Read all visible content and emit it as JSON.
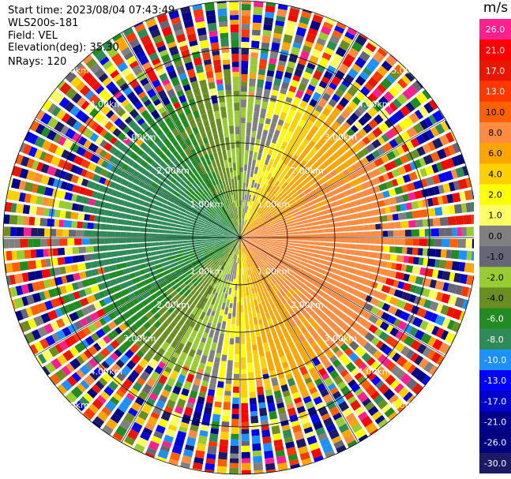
{
  "header": {
    "start_time": "Start time: 2023/08/04 07:43:49",
    "instrument": "WLS200s-181",
    "field": "Field: VEL",
    "elevation": "Elevation(deg): 35.30",
    "nrays": "NRays: 120"
  },
  "ring_labels": [
    "1.00km",
    "2.00km",
    "3.00km",
    "4.00km",
    "5.00km"
  ],
  "colorbar": {
    "unit": "m/s",
    "ticks": [
      "26.0",
      "21.0",
      "17.0",
      "13.0",
      "10.0",
      "8.0",
      "6.0",
      "4.0",
      "2.0",
      "1.0",
      "0.0",
      "-1.0",
      "-2.0",
      "-4.0",
      "-6.0",
      "-8.0",
      "-10.0",
      "-13.0",
      "-17.0",
      "-21.0",
      "-26.0",
      "-30.0"
    ],
    "colors": [
      "#ff1f8f",
      "#ff0000",
      "#e81800",
      "#ff3800",
      "#ff6000",
      "#ff8c40",
      "#ffa500",
      "#ffd000",
      "#ffff00",
      "#ffff66",
      "#808080",
      "#666677",
      "#99cc33",
      "#6b8e23",
      "#228b22",
      "#2e8b57",
      "#1e90ff",
      "#0000ff",
      "#0000cd",
      "#00008b",
      "#000080",
      "#1a1a66"
    ]
  }
}
